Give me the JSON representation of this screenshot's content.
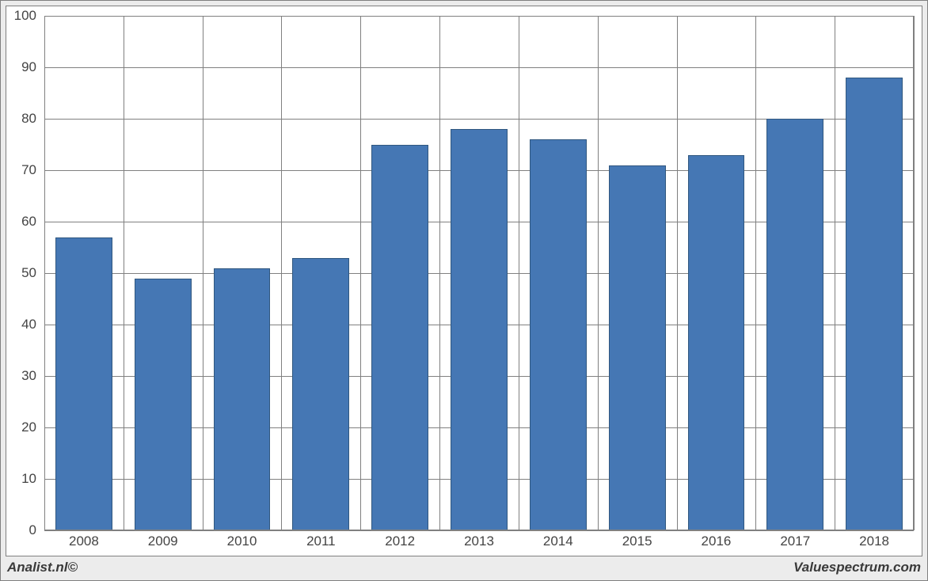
{
  "chart": {
    "type": "bar",
    "categories": [
      "2008",
      "2009",
      "2010",
      "2011",
      "2012",
      "2013",
      "2014",
      "2015",
      "2016",
      "2017",
      "2018"
    ],
    "values": [
      57,
      49,
      51,
      53,
      75,
      78,
      76,
      71,
      73,
      80,
      88
    ],
    "bar_color": "#4577b4",
    "bar_border_color": "#30577f",
    "ylim": [
      0,
      100
    ],
    "ytick_step": 10,
    "xtick_labels_fontsize": 17,
    "ytick_labels_fontsize": 17,
    "grid_color": "#808080",
    "background_color": "#ffffff",
    "frame_background": "#ececec",
    "bar_width_ratio": 0.72
  },
  "footer": {
    "left": "Analist.nl©",
    "right": "Valuespectrum.com"
  }
}
